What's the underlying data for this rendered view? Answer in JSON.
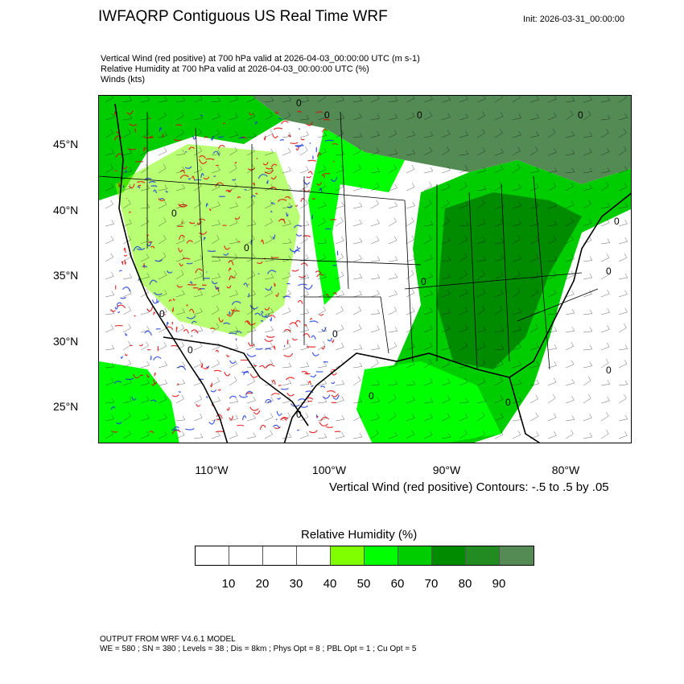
{
  "header": {
    "title": "IWFAQRP Contiguous US Real Time WRF",
    "init": "Init: 2026-03-31_00:00:00",
    "subtitles": [
      "Vertical Wind (red positive) at 700 hPa valid at 2026-04-03_00:00:00 UTC   (m s-1)",
      "Relative Humidity at 700 hPa valid at 2026-04-03_00:00:00 UTC   (%)",
      "Winds   (kts)"
    ]
  },
  "map": {
    "lat_labels": [
      "45°N",
      "40°N",
      "35°N",
      "30°N",
      "25°N"
    ],
    "lon_labels": [
      "110°W",
      "100°W",
      "90°W",
      "80°W"
    ],
    "contour_label": "0",
    "colors": {
      "positive": "#e00000",
      "negative": "#1030e0",
      "barbs": "#000000"
    }
  },
  "contour_info": "Vertical Wind (red positive) Contours: -.5 to .5 by .05",
  "colorbar": {
    "title": "Relative Humidity  (%)",
    "labels": [
      "10",
      "20",
      "30",
      "40",
      "50",
      "60",
      "70",
      "80",
      "90"
    ],
    "colors": [
      "#ffffff",
      "#ffffff",
      "#ffffff",
      "#ffffff",
      "#80ff00",
      "#00ff00",
      "#00cd00",
      "#008b00",
      "#228b22",
      "#548b54"
    ]
  },
  "footer": {
    "line1": "OUTPUT FROM WRF V4.6.1 MODEL",
    "line2": "WE = 580 ; SN = 380 ; Levels = 38 ; Dis = 8km ; Phys Opt = 8 ; PBL Opt = 1 ; Cu Opt = 5"
  }
}
